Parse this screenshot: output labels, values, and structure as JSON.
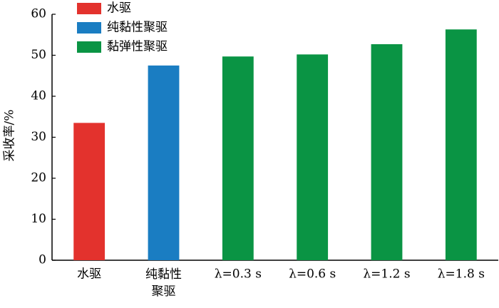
{
  "chart_data": {
    "type": "bar",
    "y_label": "采收率/%",
    "categories": [
      "水驱",
      "纯黏性\n聚驱",
      "λ=0.3 s",
      "λ=0.6 s",
      "λ=1.2 s",
      "λ=1.8 s"
    ],
    "series": [
      {
        "name": "水驱",
        "color": "#e3322d",
        "values": [
          33.5,
          null,
          null,
          null,
          null,
          null
        ]
      },
      {
        "name": "纯黏性聚驱",
        "color": "#1a7dc2",
        "values": [
          null,
          47.5,
          null,
          null,
          null,
          null
        ]
      },
      {
        "name": "黏弹性聚驱",
        "color": "#0a9444",
        "values": [
          null,
          null,
          49.7,
          50.2,
          52.7,
          56.3
        ]
      }
    ],
    "ylim": [
      0,
      60
    ],
    "yticks": [
      0,
      10,
      20,
      30,
      40,
      50,
      60
    ],
    "grid": false,
    "legend": "upper left"
  }
}
